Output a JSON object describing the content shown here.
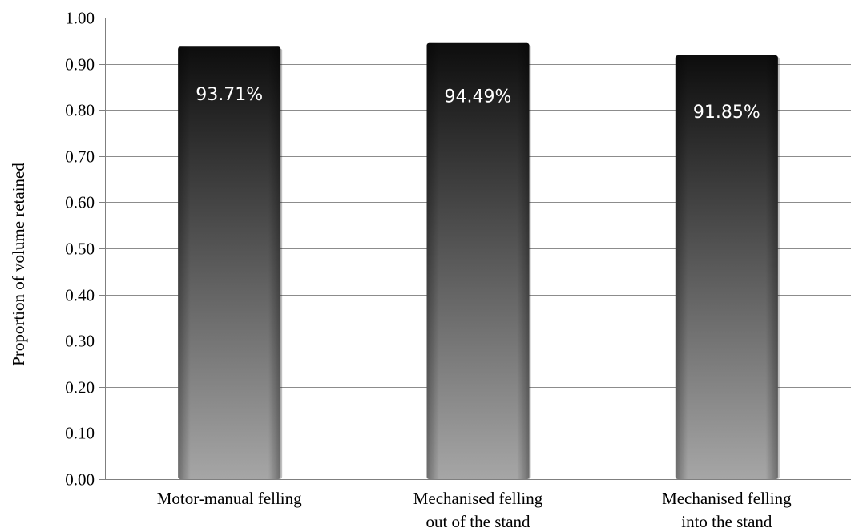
{
  "chart_data": {
    "type": "bar",
    "title": "",
    "xlabel": "",
    "ylabel": "Proportion of volume retained",
    "ylim": [
      0,
      1.0
    ],
    "yticks": [
      "0.00",
      "0.10",
      "0.20",
      "0.30",
      "0.40",
      "0.50",
      "0.60",
      "0.70",
      "0.80",
      "0.90",
      "1.00"
    ],
    "grid": "horizontal",
    "legend": "none",
    "categories": [
      [
        "Motor-manual felling"
      ],
      [
        "Mechanised felling",
        "out of the stand"
      ],
      [
        "Mechanised felling",
        "into the stand"
      ]
    ],
    "values": [
      0.9371,
      0.9449,
      0.9185
    ],
    "data_labels": [
      "93.71%",
      "94.49%",
      "91.85%"
    ],
    "colors": {
      "bar_top": "#0d0d0d",
      "bar_bottom": "#a6a6a6",
      "grid": "#8c8c8c",
      "axis": "#7f7f7f"
    }
  }
}
